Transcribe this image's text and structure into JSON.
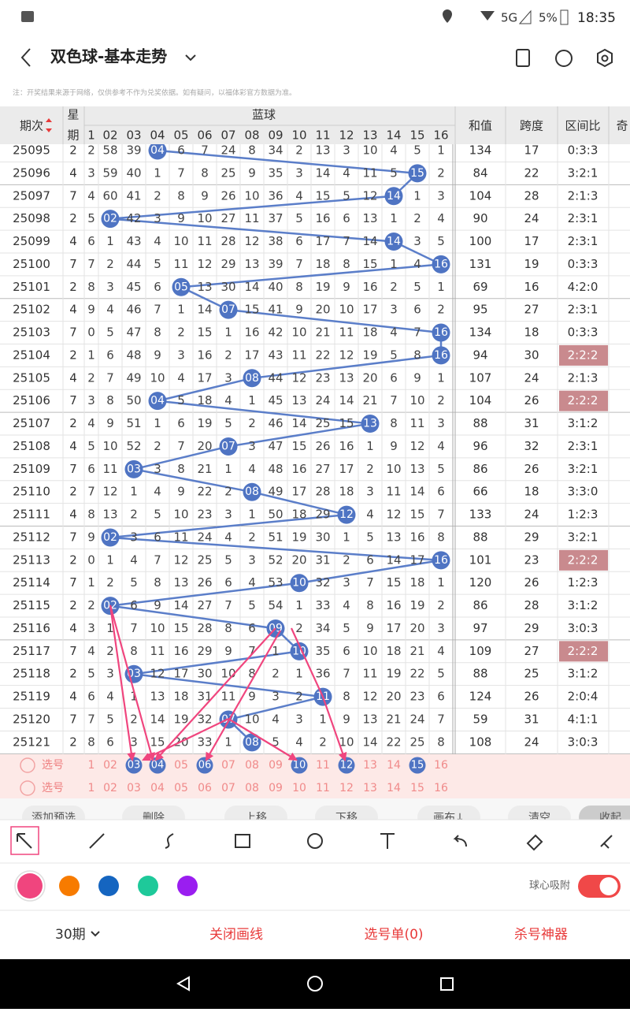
{
  "status_bar": {
    "network": "5G",
    "battery": "5%",
    "time": "18:35"
  },
  "header": {
    "title": "双色球-基本走势"
  },
  "notice": "注：开奖结果来源于网络，仅供参考不作为兑奖依据。如有疑问，以福体彩官方数据为准。",
  "table": {
    "headers": {
      "issue": "期次",
      "week": [
        "星",
        "期"
      ],
      "group": "蓝球",
      "numbers": [
        "1",
        "02",
        "03",
        "04",
        "05",
        "06",
        "07",
        "08",
        "09",
        "10",
        "11",
        "12",
        "13",
        "14",
        "15",
        "16"
      ],
      "sum": "和值",
      "span": "跨度",
      "ratio": "区间比",
      "odd": "奇"
    },
    "rows": [
      {
        "issue": "25095",
        "week": "2",
        "cells": [
          "2",
          "58",
          "39",
          {
            "ball": "04"
          },
          "6",
          "7",
          "24",
          "8",
          "34",
          "2",
          "13",
          "3",
          "10",
          "4",
          "5",
          "1"
        ],
        "sum": "134",
        "span": "17",
        "ratio": "0:3:3"
      },
      {
        "issue": "25096",
        "week": "4",
        "cells": [
          "3",
          "59",
          "40",
          "1",
          "7",
          "8",
          "25",
          "9",
          "35",
          "3",
          "14",
          "4",
          "11",
          "5",
          {
            "ball": "15"
          },
          "2"
        ],
        "sum": "84",
        "span": "22",
        "ratio": "3:2:1"
      },
      {
        "issue": "25097",
        "week": "7",
        "cells": [
          "4",
          "60",
          "41",
          "2",
          "8",
          "9",
          "26",
          "10",
          "36",
          "4",
          "15",
          "5",
          "12",
          {
            "ball": "14"
          },
          "1",
          "3"
        ],
        "sum": "104",
        "span": "28",
        "ratio": "2:1:3"
      },
      {
        "issue": "25098",
        "week": "2",
        "cells": [
          "5",
          {
            "ball": "02"
          },
          "42",
          "3",
          "9",
          "10",
          "27",
          "11",
          "37",
          "5",
          "16",
          "6",
          "13",
          "1",
          "2",
          "4"
        ],
        "sum": "90",
        "span": "24",
        "ratio": "2:3:1"
      },
      {
        "issue": "25099",
        "week": "4",
        "cells": [
          "6",
          "1",
          "43",
          "4",
          "10",
          "11",
          "28",
          "12",
          "38",
          "6",
          "17",
          "7",
          "14",
          {
            "ball": "14"
          },
          "3",
          "5"
        ],
        "sum": "100",
        "span": "17",
        "ratio": "2:3:1"
      },
      {
        "issue": "25100",
        "week": "7",
        "cells": [
          "7",
          "2",
          "44",
          "5",
          "11",
          "12",
          "29",
          "13",
          "39",
          "7",
          "18",
          "8",
          "15",
          "1",
          "4",
          {
            "ball": "16"
          }
        ],
        "sum": "131",
        "span": "19",
        "ratio": "0:3:3"
      },
      {
        "issue": "25101",
        "week": "2",
        "cells": [
          "8",
          "3",
          "45",
          "6",
          {
            "ball": "05"
          },
          "13",
          "30",
          "14",
          "40",
          "8",
          "19",
          "9",
          "16",
          "2",
          "5",
          "1"
        ],
        "sum": "69",
        "span": "16",
        "ratio": "4:2:0"
      },
      {
        "issue": "25102",
        "week": "4",
        "cells": [
          "9",
          "4",
          "46",
          "7",
          "1",
          "14",
          {
            "ball": "07"
          },
          "15",
          "41",
          "9",
          "20",
          "10",
          "17",
          "3",
          "6",
          "2"
        ],
        "sum": "95",
        "span": "27",
        "ratio": "2:3:1"
      },
      {
        "issue": "25103",
        "week": "7",
        "cells": [
          "0",
          "5",
          "47",
          "8",
          "2",
          "15",
          "1",
          "16",
          "42",
          "10",
          "21",
          "11",
          "18",
          "4",
          "7",
          {
            "ball": "16"
          }
        ],
        "sum": "134",
        "span": "18",
        "ratio": "0:3:3"
      },
      {
        "issue": "25104",
        "week": "2",
        "cells": [
          "1",
          "6",
          "48",
          "9",
          "3",
          "16",
          "2",
          "17",
          "43",
          "11",
          "22",
          "12",
          "19",
          "5",
          "8",
          {
            "ball": "16"
          }
        ],
        "sum": "94",
        "span": "30",
        "ratio": "2:2:2",
        "highlight": true
      },
      {
        "issue": "25105",
        "week": "4",
        "cells": [
          "2",
          "7",
          "49",
          "10",
          "4",
          "17",
          "3",
          {
            "ball": "08"
          },
          "44",
          "12",
          "23",
          "13",
          "20",
          "6",
          "9",
          "1"
        ],
        "sum": "107",
        "span": "24",
        "ratio": "2:1:3"
      },
      {
        "issue": "25106",
        "week": "7",
        "cells": [
          "3",
          "8",
          "50",
          {
            "ball": "04"
          },
          "5",
          "18",
          "4",
          "1",
          "45",
          "13",
          "24",
          "14",
          "21",
          "7",
          "10",
          "2"
        ],
        "sum": "104",
        "span": "26",
        "ratio": "2:2:2",
        "highlight": true
      },
      {
        "issue": "25107",
        "week": "2",
        "cells": [
          "4",
          "9",
          "51",
          "1",
          "6",
          "19",
          "5",
          "2",
          "46",
          "14",
          "25",
          "15",
          {
            "ball": "13"
          },
          "8",
          "11",
          "3"
        ],
        "sum": "88",
        "span": "31",
        "ratio": "3:1:2"
      },
      {
        "issue": "25108",
        "week": "4",
        "cells": [
          "5",
          "10",
          "52",
          "2",
          "7",
          "20",
          {
            "ball": "07"
          },
          "3",
          "47",
          "15",
          "26",
          "16",
          "1",
          "9",
          "12",
          "4"
        ],
        "sum": "96",
        "span": "32",
        "ratio": "2:3:1"
      },
      {
        "issue": "25109",
        "week": "7",
        "cells": [
          "6",
          "11",
          {
            "ball": "03"
          },
          "3",
          "8",
          "21",
          "1",
          "4",
          "48",
          "16",
          "27",
          "17",
          "2",
          "10",
          "13",
          "5"
        ],
        "sum": "86",
        "span": "26",
        "ratio": "3:2:1"
      },
      {
        "issue": "25110",
        "week": "2",
        "cells": [
          "7",
          "12",
          "1",
          "4",
          "9",
          "22",
          "2",
          {
            "ball": "08"
          },
          "49",
          "17",
          "28",
          "18",
          "3",
          "11",
          "14",
          "6"
        ],
        "sum": "66",
        "span": "18",
        "ratio": "3:3:0"
      },
      {
        "issue": "25111",
        "week": "4",
        "cells": [
          "8",
          "13",
          "2",
          "5",
          "10",
          "23",
          "3",
          "1",
          "50",
          "18",
          "29",
          {
            "ball": "12"
          },
          "4",
          "12",
          "15",
          "7"
        ],
        "sum": "133",
        "span": "24",
        "ratio": "1:2:3"
      },
      {
        "issue": "25112",
        "week": "7",
        "cells": [
          "9",
          {
            "ball": "02"
          },
          "3",
          "6",
          "11",
          "24",
          "4",
          "2",
          "51",
          "19",
          "30",
          "1",
          "5",
          "13",
          "16",
          "8"
        ],
        "sum": "88",
        "span": "29",
        "ratio": "3:2:1"
      },
      {
        "issue": "25113",
        "week": "2",
        "cells": [
          "0",
          "1",
          "4",
          "7",
          "12",
          "25",
          "5",
          "3",
          "52",
          "20",
          "31",
          "2",
          "6",
          "14",
          "17",
          {
            "ball": "16"
          }
        ],
        "sum": "101",
        "span": "23",
        "ratio": "2:2:2",
        "highlight": true
      },
      {
        "issue": "25114",
        "week": "7",
        "cells": [
          "1",
          "2",
          "5",
          "8",
          "13",
          "26",
          "6",
          "4",
          "53",
          {
            "ball": "10"
          },
          "32",
          "3",
          "7",
          "15",
          "18",
          "1"
        ],
        "sum": "120",
        "span": "26",
        "ratio": "1:2:3"
      },
      {
        "issue": "25115",
        "week": "2",
        "cells": [
          "2",
          {
            "ball": "02"
          },
          "6",
          "9",
          "14",
          "27",
          "7",
          "5",
          "54",
          "1",
          "33",
          "4",
          "8",
          "16",
          "19",
          "2"
        ],
        "sum": "86",
        "span": "28",
        "ratio": "3:1:2"
      },
      {
        "issue": "25116",
        "week": "4",
        "cells": [
          "3",
          "1",
          "7",
          "10",
          "15",
          "28",
          "8",
          "6",
          {
            "ball": "09"
          },
          "2",
          "34",
          "5",
          "9",
          "17",
          "20",
          "3"
        ],
        "sum": "97",
        "span": "29",
        "ratio": "3:0:3"
      },
      {
        "issue": "25117",
        "week": "7",
        "cells": [
          "4",
          "2",
          "8",
          "11",
          "16",
          "29",
          "9",
          "7",
          "1",
          {
            "ball": "10"
          },
          "35",
          "6",
          "10",
          "18",
          "21",
          "4"
        ],
        "sum": "109",
        "span": "27",
        "ratio": "2:2:2",
        "highlight": true
      },
      {
        "issue": "25118",
        "week": "2",
        "cells": [
          "5",
          "3",
          {
            "ball": "03"
          },
          "12",
          "17",
          "30",
          "10",
          "8",
          "2",
          "1",
          "36",
          "7",
          "11",
          "19",
          "22",
          "5"
        ],
        "sum": "88",
        "span": "25",
        "ratio": "3:1:2"
      },
      {
        "issue": "25119",
        "week": "4",
        "cells": [
          "6",
          "4",
          "1",
          "13",
          "18",
          "31",
          "11",
          "9",
          "3",
          "2",
          {
            "ball": "11"
          },
          "8",
          "12",
          "20",
          "23",
          "6"
        ],
        "sum": "124",
        "span": "26",
        "ratio": "2:0:4"
      },
      {
        "issue": "25120",
        "week": "7",
        "cells": [
          "7",
          "5",
          "2",
          "14",
          "19",
          "32",
          {
            "ball": "07"
          },
          "10",
          "4",
          "3",
          "1",
          "9",
          "13",
          "21",
          "24",
          "7"
        ],
        "sum": "59",
        "span": "31",
        "ratio": "4:1:1"
      },
      {
        "issue": "25121",
        "week": "2",
        "cells": [
          "8",
          "6",
          "3",
          "15",
          "20",
          "33",
          "1",
          {
            "ball": "08"
          },
          "5",
          "4",
          "2",
          "10",
          "14",
          "22",
          "25",
          "8"
        ],
        "sum": "108",
        "span": "24",
        "ratio": "3:0:3"
      }
    ],
    "select_rows": [
      {
        "label": "选号",
        "cells": [
          "1",
          "02",
          {
            "ball": "03"
          },
          {
            "ball": "04"
          },
          "05",
          {
            "ball": "06"
          },
          "07",
          "08",
          "09",
          {
            "ball": "10"
          },
          "11",
          {
            "ball": "12"
          },
          "13",
          "14",
          {
            "ball": "15"
          },
          "16"
        ]
      },
      {
        "label": "选号",
        "cells": [
          "1",
          "02",
          "03",
          "04",
          "05",
          "06",
          "07",
          "08",
          "09",
          "10",
          "11",
          "12",
          "13",
          "14",
          "15",
          "16"
        ]
      }
    ]
  },
  "buttons": [
    "添加预选",
    "删除",
    "上移",
    "下移",
    "画布↓",
    "清空",
    "收起"
  ],
  "snap_label": "球心吸附",
  "footer": {
    "period": "30期",
    "close": "关闭画线",
    "list": "选号单(0)",
    "kill": "杀号神器"
  }
}
